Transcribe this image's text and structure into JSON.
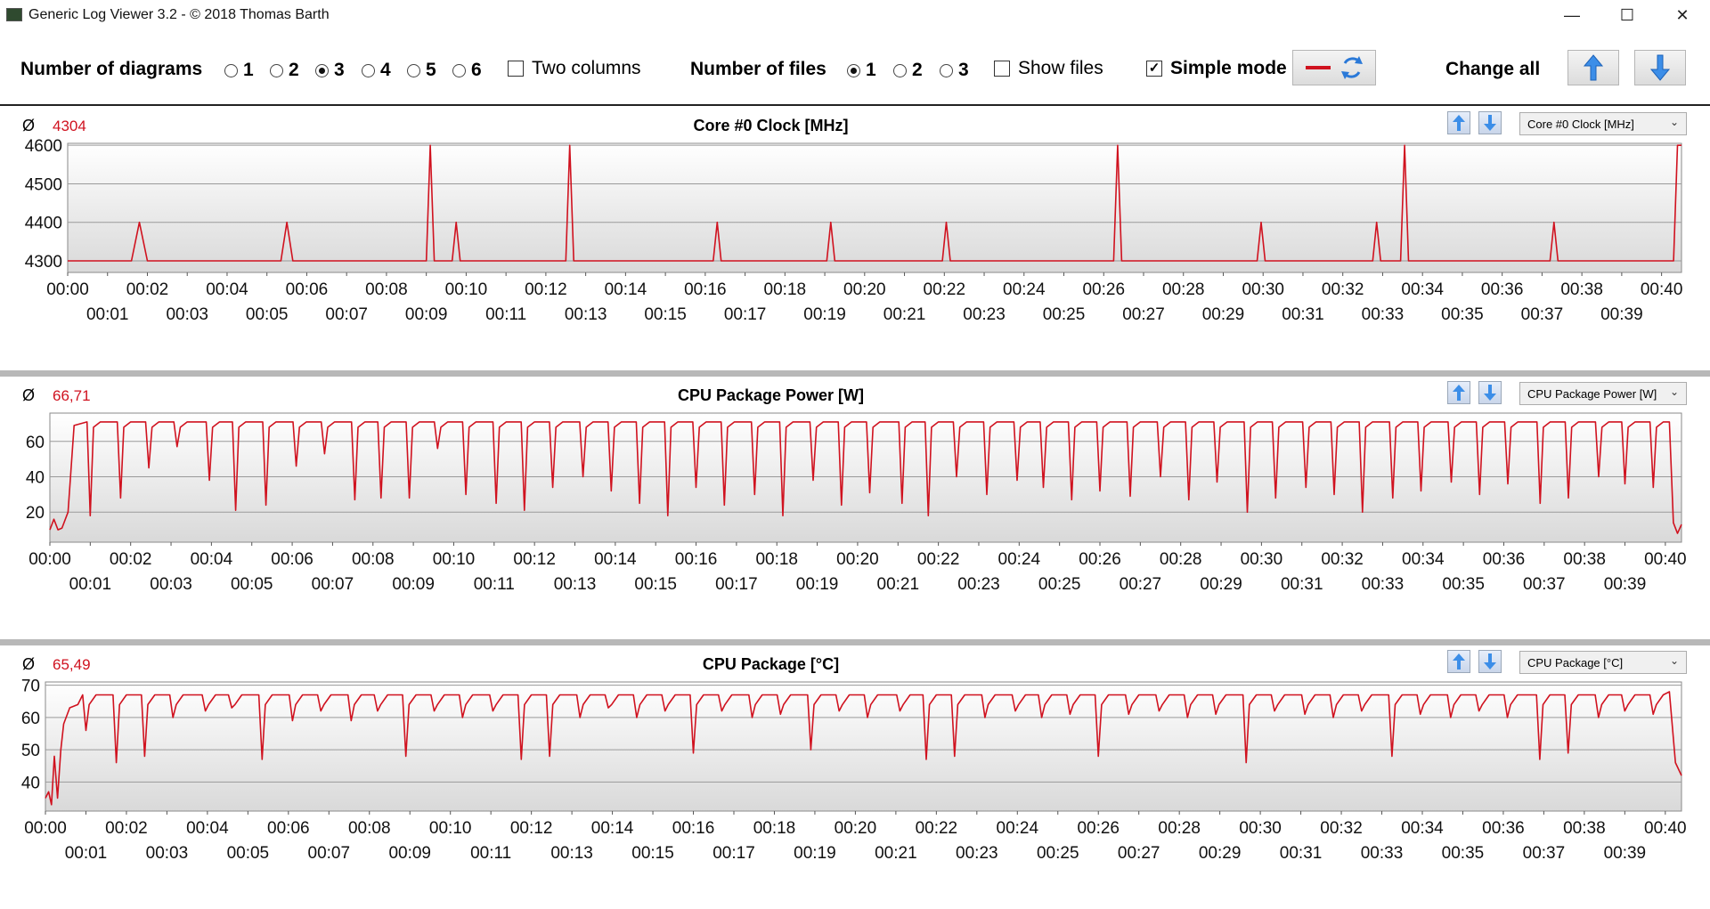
{
  "window": {
    "title": "Generic Log Viewer 3.2 - © 2018 Thomas Barth",
    "minimize": "—",
    "maximize": "☐",
    "close": "✕"
  },
  "toolbar": {
    "diagrams_label": "Number of diagrams",
    "diagram_options": [
      "1",
      "2",
      "3",
      "4",
      "5",
      "6"
    ],
    "diagram_selected": "3",
    "two_columns_label": "Two columns",
    "two_columns_checked": false,
    "files_label": "Number of files",
    "file_options": [
      "1",
      "2",
      "3"
    ],
    "file_selected": "1",
    "show_files_label": "Show files",
    "show_files_checked": false,
    "simple_mode_label": "Simple mode",
    "simple_mode_checked": true,
    "change_all_label": "Change all"
  },
  "colors": {
    "line": "#d0121f",
    "avg": "#d0121f",
    "grid": "#9a9a9a",
    "separator": "#b8b8b8"
  },
  "panels": [
    {
      "avg_symbol": "Ø",
      "avg_value": "4304",
      "title": "Core #0 Clock [MHz]",
      "selector": "Core #0 Clock [MHz]"
    },
    {
      "avg_symbol": "Ø",
      "avg_value": "66,71",
      "title": "CPU Package Power [W]",
      "selector": "CPU Package Power [W]"
    },
    {
      "avg_symbol": "Ø",
      "avg_value": "65,49",
      "title": "CPU Package [°C]",
      "selector": "CPU Package [°C]"
    }
  ],
  "chart_data": [
    {
      "type": "line",
      "title": "Core #0 Clock [MHz]",
      "ylim": [
        4270,
        4605
      ],
      "yticks": [
        4300,
        4400,
        4500,
        4600
      ],
      "xlim": [
        0,
        40.5
      ],
      "xticks_top": [
        "00:00",
        "00:02",
        "00:04",
        "00:06",
        "00:08",
        "00:10",
        "00:12",
        "00:14",
        "00:16",
        "00:18",
        "00:20",
        "00:22",
        "00:24",
        "00:26",
        "00:28",
        "00:30",
        "00:32",
        "00:34",
        "00:36",
        "00:38",
        "00:40"
      ],
      "xticks_bottom": [
        "00:01",
        "00:03",
        "00:05",
        "00:07",
        "00:09",
        "00:11",
        "00:13",
        "00:15",
        "00:17",
        "00:19",
        "00:21",
        "00:23",
        "00:25",
        "00:27",
        "00:29",
        "00:31",
        "00:33",
        "00:35",
        "00:37",
        "00:39"
      ],
      "grid": true,
      "series": [
        {
          "x": [
            0,
            1.6,
            1.8,
            2.0,
            5.35,
            5.5,
            5.65,
            9.0,
            9.1,
            9.2,
            9.65,
            9.75,
            9.85,
            12.5,
            12.6,
            12.7,
            16.2,
            16.3,
            16.4,
            19.05,
            19.15,
            19.25,
            21.95,
            22.05,
            22.15,
            26.25,
            26.35,
            26.45,
            29.85,
            29.95,
            30.05,
            32.75,
            32.85,
            32.95,
            33.45,
            33.55,
            33.65,
            37.2,
            37.3,
            37.4,
            40.3,
            40.4,
            40.5
          ],
          "y": [
            4300,
            4300,
            4400,
            4300,
            4300,
            4400,
            4300,
            4300,
            4600,
            4300,
            4300,
            4400,
            4300,
            4300,
            4600,
            4300,
            4300,
            4400,
            4300,
            4300,
            4400,
            4300,
            4300,
            4400,
            4300,
            4300,
            4600,
            4300,
            4300,
            4400,
            4300,
            4300,
            4400,
            4300,
            4300,
            4600,
            4300,
            4300,
            4400,
            4300,
            4300,
            4600,
            4600
          ]
        }
      ]
    },
    {
      "type": "line",
      "title": "CPU Package Power [W]",
      "ylim": [
        3,
        76
      ],
      "yticks": [
        20,
        40,
        60
      ],
      "xlim": [
        0,
        40.4
      ],
      "xticks_top": [
        "00:00",
        "00:02",
        "00:04",
        "00:06",
        "00:08",
        "00:10",
        "00:12",
        "00:14",
        "00:16",
        "00:18",
        "00:20",
        "00:22",
        "00:24",
        "00:26",
        "00:28",
        "00:30",
        "00:32",
        "00:34",
        "00:36",
        "00:38",
        "00:40"
      ],
      "xticks_bottom": [
        "00:01",
        "00:03",
        "00:05",
        "00:07",
        "00:09",
        "00:11",
        "00:13",
        "00:15",
        "00:17",
        "00:19",
        "00:21",
        "00:23",
        "00:25",
        "00:27",
        "00:29",
        "00:31",
        "00:33",
        "00:35",
        "00:37",
        "00:39"
      ],
      "grid": true,
      "dips": [
        [
          1.0,
          18
        ],
        [
          1.75,
          28
        ],
        [
          2.45,
          45
        ],
        [
          3.15,
          57
        ],
        [
          3.95,
          38
        ],
        [
          4.6,
          21
        ],
        [
          5.35,
          24
        ],
        [
          6.1,
          46
        ],
        [
          6.8,
          53
        ],
        [
          7.55,
          27
        ],
        [
          8.2,
          28
        ],
        [
          8.9,
          28
        ],
        [
          9.6,
          56
        ],
        [
          10.3,
          30
        ],
        [
          11.05,
          25
        ],
        [
          11.75,
          21
        ],
        [
          12.45,
          34
        ],
        [
          13.2,
          40
        ],
        [
          13.9,
          32
        ],
        [
          14.6,
          25
        ],
        [
          15.3,
          18
        ],
        [
          16.0,
          34
        ],
        [
          16.7,
          24
        ],
        [
          17.45,
          30
        ],
        [
          18.15,
          18
        ],
        [
          18.9,
          38
        ],
        [
          19.6,
          24
        ],
        [
          20.3,
          31
        ],
        [
          21.1,
          25
        ],
        [
          21.75,
          18
        ],
        [
          22.45,
          40
        ],
        [
          23.2,
          30
        ],
        [
          23.95,
          38
        ],
        [
          24.6,
          34
        ],
        [
          25.3,
          27
        ],
        [
          26.0,
          32
        ],
        [
          26.75,
          29
        ],
        [
          27.5,
          40
        ],
        [
          28.2,
          27
        ],
        [
          28.9,
          37
        ],
        [
          29.65,
          20
        ],
        [
          30.35,
          28
        ],
        [
          31.1,
          34
        ],
        [
          31.8,
          30
        ],
        [
          32.5,
          20
        ],
        [
          33.25,
          28
        ],
        [
          33.95,
          32
        ],
        [
          34.7,
          37
        ],
        [
          35.4,
          30
        ],
        [
          36.1,
          36
        ],
        [
          36.9,
          25
        ],
        [
          37.6,
          28
        ],
        [
          38.35,
          40
        ],
        [
          39.0,
          36
        ],
        [
          39.7,
          34
        ]
      ],
      "plateau": 71,
      "series_head": {
        "x": [
          0,
          0.1,
          0.2,
          0.3,
          0.45,
          0.6
        ],
        "y": [
          10,
          16,
          10,
          11,
          20,
          69
        ]
      },
      "series_tail": {
        "x": [
          40.1,
          40.2,
          40.3,
          40.4
        ],
        "y": [
          71,
          14,
          8,
          13
        ]
      }
    },
    {
      "type": "line",
      "title": "CPU Package [°C]",
      "ylim": [
        31,
        71
      ],
      "yticks": [
        40,
        50,
        60,
        70
      ],
      "xlim": [
        0,
        40.4
      ],
      "xticks_top": [
        "00:00",
        "00:02",
        "00:04",
        "00:06",
        "00:08",
        "00:10",
        "00:12",
        "00:14",
        "00:16",
        "00:18",
        "00:20",
        "00:22",
        "00:24",
        "00:26",
        "00:28",
        "00:30",
        "00:32",
        "00:34",
        "00:36",
        "00:38",
        "00:40"
      ],
      "xticks_bottom": [
        "00:01",
        "00:03",
        "00:05",
        "00:07",
        "00:09",
        "00:11",
        "00:13",
        "00:15",
        "00:17",
        "00:19",
        "00:21",
        "00:23",
        "00:25",
        "00:27",
        "00:29",
        "00:31",
        "00:33",
        "00:35",
        "00:37",
        "00:39"
      ],
      "grid": true,
      "dips": [
        [
          1.0,
          56
        ],
        [
          1.75,
          46
        ],
        [
          2.45,
          48
        ],
        [
          3.15,
          60
        ],
        [
          3.95,
          62
        ],
        [
          4.6,
          63
        ],
        [
          5.35,
          47
        ],
        [
          6.1,
          59
        ],
        [
          6.8,
          62
        ],
        [
          7.55,
          59
        ],
        [
          8.2,
          62
        ],
        [
          8.9,
          48
        ],
        [
          9.6,
          62
        ],
        [
          10.3,
          60
        ],
        [
          11.05,
          62
        ],
        [
          11.75,
          47
        ],
        [
          12.45,
          48
        ],
        [
          13.2,
          60
        ],
        [
          13.9,
          63
        ],
        [
          14.6,
          60
        ],
        [
          15.3,
          62
        ],
        [
          16.0,
          49
        ],
        [
          16.7,
          62
        ],
        [
          17.45,
          60
        ],
        [
          18.15,
          61
        ],
        [
          18.9,
          50
        ],
        [
          19.6,
          62
        ],
        [
          20.3,
          60
        ],
        [
          21.1,
          62
        ],
        [
          21.75,
          47
        ],
        [
          22.45,
          48
        ],
        [
          23.2,
          60
        ],
        [
          23.95,
          62
        ],
        [
          24.6,
          60
        ],
        [
          25.3,
          61
        ],
        [
          26.0,
          48
        ],
        [
          26.75,
          61
        ],
        [
          27.5,
          62
        ],
        [
          28.2,
          60
        ],
        [
          28.9,
          61
        ],
        [
          29.65,
          46
        ],
        [
          30.35,
          62
        ],
        [
          31.1,
          61
        ],
        [
          31.8,
          60
        ],
        [
          32.5,
          62
        ],
        [
          33.25,
          48
        ],
        [
          33.95,
          61
        ],
        [
          34.7,
          60
        ],
        [
          35.4,
          62
        ],
        [
          36.1,
          60
        ],
        [
          36.9,
          47
        ],
        [
          37.6,
          49
        ],
        [
          38.35,
          60
        ],
        [
          39.0,
          62
        ],
        [
          39.7,
          61
        ]
      ],
      "plateau": 67,
      "series_head": {
        "x": [
          0,
          0.08,
          0.15,
          0.22,
          0.3,
          0.38,
          0.45,
          0.6,
          0.8
        ],
        "y": [
          35,
          37,
          33,
          48,
          35,
          50,
          58,
          63,
          64
        ]
      },
      "series_tail": {
        "x": [
          40.1,
          40.25,
          40.4
        ],
        "y": [
          68,
          46,
          42
        ]
      }
    }
  ]
}
